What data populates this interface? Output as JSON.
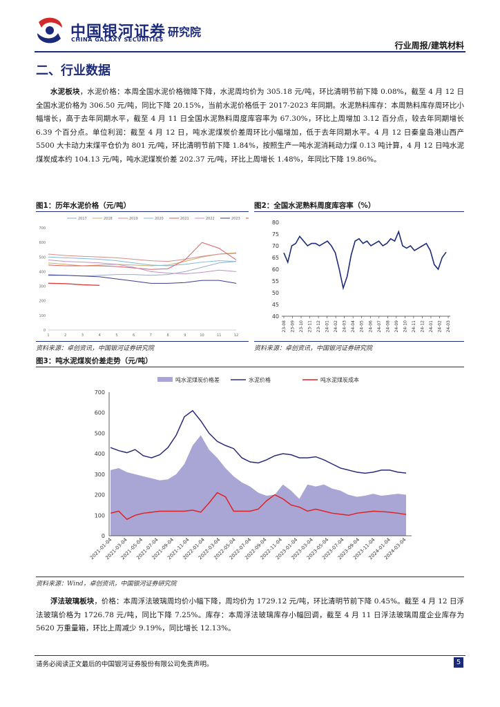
{
  "header": {
    "logo_cn": "中国银河证券",
    "logo_en": "CHINA GALAXY SECURITIES",
    "institute": "研究院",
    "report_type": "行业周报/建筑材料"
  },
  "section": {
    "title": "二、行业数据"
  },
  "cement": {
    "label": "水泥板块",
    "text": "，水泥价格：本周全国水泥价格微降下降，水泥周均价为 305.18 元/吨，环比清明节前下降 0.08%，截至 4 月 12 日全国水泥价格为 306.50 元/吨，同比下降 20.15%，当前水泥价格低于 2017-2023 年同期。水泥熟料库存：本周熟料库存周环比小幅增长，高于去年同期水平，截至 4 月 11 日全国水泥熟料周度库容率为 67.30%，环比上周增加 3.12 百分点，较去年同期增长 6.39 个百分点。单位利润：截至 4 月 12 日，吨水泥煤炭价差周环比小幅增加，低于去年同期水平。4 月 12 日秦皇岛港山西产 5500 大卡动力末煤平仓价为 801 元/吨，环比清明节前下降 1.84%，按照生产一吨水泥消耗动力煤 0.13 吨计算，4 月 12 日吨水泥煤炭成本约 104.13 元/吨，吨水泥煤炭价差 202.37 元/吨，环比上周增长 1.48%，年同比下降 19.86%。"
  },
  "glass": {
    "label": "浮法玻璃板块",
    "text": "，价格：本周浮法玻璃周均价小幅下降，周均价为 1729.12 元/吨，环比清明节前下降 0.45%。截至 4 月 12 日浮法玻璃价格为 1726.78 元/吨，同比下降 7.25%。库存：本周浮法玻璃库存小幅回调，截至 4 月 11 日浮法玻璃周度企业库存为 5620 万重量箱，环比上周减少 9.19%，同比增长 12.13%。"
  },
  "figures": {
    "fig1": {
      "title": "图1：历年水泥价格（元/吨）",
      "source": "资料来源：卓创资讯，中国银河证券研究院"
    },
    "fig2": {
      "title": "图2：全国水泥熟料周度库容率（%）",
      "source": "资料来源：卓创资讯，中国银河证券研究院"
    },
    "fig3": {
      "title": "图3：吨水泥煤炭价差走势（元/吨）",
      "source": "资料来源：Wind，卓创资讯，中国银河证券研究院"
    }
  },
  "footer": {
    "disclaimer": "请务必阅读正文最后的中国银河证券股份有限公司免责声明。",
    "page": "5"
  },
  "colors": {
    "brand": "#1c2a7a",
    "red": "#e02020",
    "lavender": "#a9a6d6",
    "navy": "#2a2a78"
  },
  "chart_data": [
    {
      "id": "fig1",
      "type": "line",
      "title": "历年水泥价格（元/吨）",
      "categories": [
        "1",
        "2",
        "3",
        "4",
        "5",
        "6",
        "7",
        "8",
        "9",
        "10",
        "11",
        "12"
      ],
      "ylim": [
        0,
        700
      ],
      "yticks": [
        0,
        100,
        200,
        300,
        400,
        500,
        600,
        700
      ],
      "series": [
        {
          "name": "2017",
          "color": "#9aa8c8",
          "values": [
            380,
            375,
            370,
            375,
            380,
            380,
            375,
            380,
            400,
            430,
            460,
            470
          ]
        },
        {
          "name": "2018",
          "color": "#c9b06a",
          "values": [
            460,
            450,
            440,
            445,
            450,
            445,
            440,
            445,
            470,
            500,
            520,
            530
          ]
        },
        {
          "name": "2019",
          "color": "#d98a8a",
          "values": [
            520,
            510,
            505,
            500,
            495,
            485,
            475,
            470,
            485,
            505,
            520,
            525
          ]
        },
        {
          "name": "2020",
          "color": "#7fb7d9",
          "values": [
            500,
            495,
            490,
            485,
            475,
            460,
            445,
            440,
            450,
            465,
            475,
            470
          ]
        },
        {
          "name": "2021",
          "color": "#e05a5a",
          "values": [
            445,
            440,
            440,
            440,
            435,
            425,
            415,
            420,
            480,
            600,
            560,
            480
          ]
        },
        {
          "name": "2022",
          "color": "#c090c8",
          "values": [
            480,
            470,
            465,
            460,
            450,
            430,
            400,
            390,
            385,
            395,
            410,
            400
          ]
        },
        {
          "name": "2023",
          "color": "#3a3a8c",
          "values": [
            375,
            375,
            370,
            365,
            350,
            335,
            320,
            320,
            325,
            340,
            340,
            320
          ]
        },
        {
          "name": "2024",
          "color": "#d84040",
          "values": [
            320,
            318,
            310,
            306,
            null,
            null,
            null,
            null,
            null,
            null,
            null,
            null
          ]
        }
      ]
    },
    {
      "id": "fig2",
      "type": "line",
      "title": "全国水泥熟料周度库容率（%）",
      "ylim": [
        40,
        80
      ],
      "yticks": [
        40,
        45,
        50,
        55,
        60,
        65,
        70,
        75,
        80
      ],
      "xticks": [
        "23-08",
        "23-09",
        "23-10",
        "23-11",
        "23-12",
        "24-01",
        "24-02",
        "24-03",
        "24-04",
        "24-05",
        "24-06",
        "24-07",
        "24-08",
        "24-09",
        "24-10",
        "24-11",
        "24-12",
        "24-01",
        "24-02",
        "24-03"
      ],
      "series": [
        {
          "name": "库容率",
          "color": "#1c2a7a",
          "values": [
            67,
            63,
            70,
            71,
            74,
            72,
            70,
            71,
            71,
            70,
            71,
            72,
            70,
            67,
            60,
            52,
            57,
            66,
            72,
            73,
            71,
            72,
            70,
            71,
            72,
            70,
            71,
            73,
            72,
            76,
            70,
            69,
            70,
            68,
            69,
            70,
            71,
            68,
            62,
            60,
            65,
            67.3
          ]
        }
      ]
    },
    {
      "id": "fig3",
      "type": "line",
      "title": "吨水泥煤炭价差走势（元/吨）",
      "ylim": [
        0,
        700
      ],
      "yticks": [
        0,
        100,
        200,
        300,
        400,
        500,
        600,
        700
      ],
      "xticks": [
        "2021-01-04",
        "2021-03-04",
        "2021-05-04",
        "2021-07-04",
        "2021-09-04",
        "2021-11-04",
        "2022-01-04",
        "2022-03-04",
        "2022-05-04",
        "2022-07-04",
        "2022-09-04",
        "2022-11-04",
        "2023-01-04",
        "2023-03-04",
        "2023-05-04",
        "2023-07-04",
        "2023-09-04",
        "2023-11-04",
        "2024-01-04",
        "2024-03-04"
      ],
      "series": [
        {
          "name": "吨水泥煤炭价格差",
          "type": "area",
          "color": "#a9a6d6",
          "values": [
            320,
            330,
            310,
            300,
            290,
            280,
            270,
            275,
            300,
            350,
            440,
            490,
            420,
            380,
            330,
            290,
            260,
            240,
            210,
            195,
            200,
            250,
            220,
            180,
            250,
            240,
            250,
            230,
            220,
            200,
            190,
            195,
            205,
            195,
            200,
            205,
            200
          ]
        },
        {
          "name": "水泥价格",
          "type": "line",
          "color": "#2a2a78",
          "values": [
            430,
            415,
            405,
            420,
            390,
            380,
            395,
            430,
            490,
            580,
            610,
            560,
            500,
            460,
            440,
            425,
            380,
            360,
            355,
            370,
            390,
            400,
            395,
            380,
            380,
            385,
            370,
            350,
            330,
            320,
            310,
            305,
            310,
            320,
            320,
            310,
            306
          ]
        },
        {
          "name": "吨水泥煤炭成本",
          "type": "line",
          "color": "#e02020",
          "values": [
            110,
            120,
            80,
            100,
            110,
            115,
            120,
            120,
            120,
            120,
            125,
            115,
            160,
            210,
            190,
            120,
            120,
            120,
            130,
            170,
            200,
            180,
            150,
            140,
            120,
            130,
            120,
            110,
            105,
            100,
            110,
            115,
            120,
            118,
            115,
            110,
            104
          ]
        }
      ]
    }
  ]
}
